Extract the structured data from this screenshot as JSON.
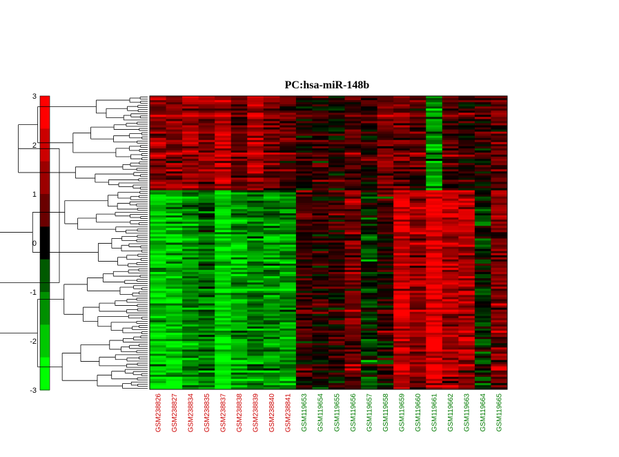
{
  "chart_data": {
    "type": "heatmap",
    "title": "PC:hsa-miR-148b",
    "colorbar": {
      "ticks": [
        "3",
        "2",
        "1",
        "0",
        "-1",
        "-2",
        "-3"
      ],
      "range": [
        -3,
        3
      ],
      "scale": [
        "#00ff00",
        "#00c800",
        "#009000",
        "#005a00",
        "#000000",
        "#6a0000",
        "#9c0000",
        "#cc0000",
        "#ff0000"
      ]
    },
    "samples": [
      {
        "label": "GSM238826",
        "color": "#cc0000"
      },
      {
        "label": "GSM238827",
        "color": "#cc0000"
      },
      {
        "label": "GSM238834",
        "color": "#cc0000"
      },
      {
        "label": "GSM238835",
        "color": "#cc0000"
      },
      {
        "label": "GSM238837",
        "color": "#cc0000"
      },
      {
        "label": "GSM238838",
        "color": "#cc0000"
      },
      {
        "label": "GSM238839",
        "color": "#cc0000"
      },
      {
        "label": "GSM238840",
        "color": "#cc0000"
      },
      {
        "label": "GSM238841",
        "color": "#cc0000"
      },
      {
        "label": "GSM119653",
        "color": "#007a00"
      },
      {
        "label": "GSM119654",
        "color": "#007a00"
      },
      {
        "label": "GSM119655",
        "color": "#007a00"
      },
      {
        "label": "GSM119656",
        "color": "#007a00"
      },
      {
        "label": "GSM119657",
        "color": "#007a00"
      },
      {
        "label": "GSM119658",
        "color": "#007a00"
      },
      {
        "label": "GSM119659",
        "color": "#007a00"
      },
      {
        "label": "GSM119660",
        "color": "#007a00"
      },
      {
        "label": "GSM119661",
        "color": "#007a00"
      },
      {
        "label": "GSM119662",
        "color": "#007a00"
      },
      {
        "label": "GSM119663",
        "color": "#007a00"
      },
      {
        "label": "GSM119664",
        "color": "#007a00"
      },
      {
        "label": "GSM119665",
        "color": "#007a00"
      }
    ],
    "column_block_means": {
      "upper_cluster": [
        1.6,
        1.4,
        1.8,
        1.5,
        2.2,
        1.2,
        1.9,
        1.3,
        1.0,
        0.3,
        0.6,
        0.2,
        0.8,
        0.5,
        1.2,
        1.3,
        0.9,
        -1.8,
        0.7,
        0.4,
        0.5,
        1.0
      ],
      "lower_cluster": [
        -2.2,
        -2.3,
        -1.6,
        -1.2,
        -2.5,
        -1.9,
        -1.4,
        -1.6,
        -1.7,
        0.8,
        0.4,
        0.6,
        1.3,
        -0.5,
        0.5,
        2.5,
        1.8,
        2.8,
        2.0,
        2.1,
        -0.3,
        1.6
      ]
    },
    "row_clusters": [
      "upper_cluster",
      "lower_cluster"
    ],
    "dendrogram": "row"
  }
}
